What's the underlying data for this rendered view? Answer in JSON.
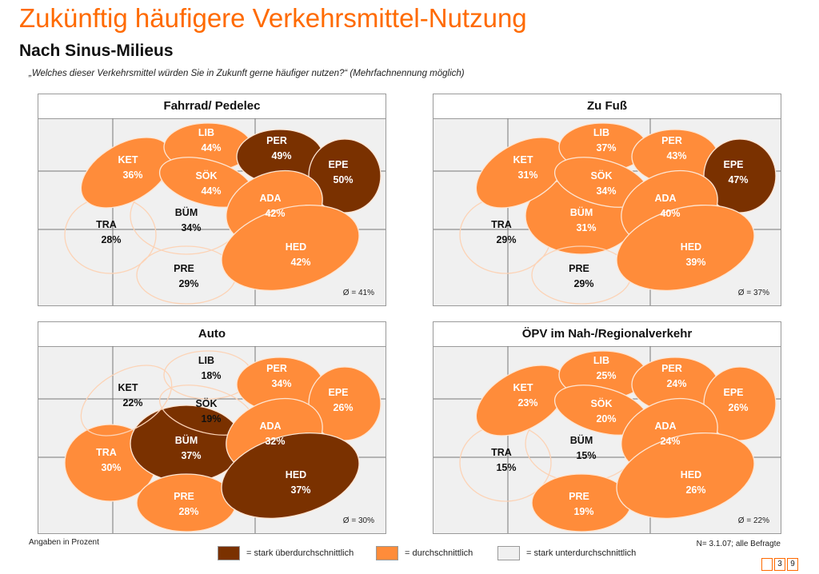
{
  "header": {
    "title": "Zukünftig häufigere Verkehrsmittel-Nutzung",
    "subtitle": "Nach Sinus-Milieus",
    "question": "„Welches dieser Verkehrsmittel würden Sie in Zukunft gerne häufiger nutzen?“ (Mehrfachnennung möglich)"
  },
  "colors": {
    "stark_ueber": "#7a3100",
    "durchschnitt": "#ff8c3a",
    "stark_unter": "#f0f0f0",
    "accent": "#ff6a00"
  },
  "panels": [
    {
      "title": "Fahrrad/ Pedelec",
      "average": "Ø = 41%",
      "milieus": {
        "KET": {
          "value": "36%",
          "level": "avg"
        },
        "LIB": {
          "value": "44%",
          "level": "avg"
        },
        "PER": {
          "value": "49%",
          "level": "high"
        },
        "EPE": {
          "value": "50%",
          "level": "high"
        },
        "SÖK": {
          "value": "44%",
          "level": "avg"
        },
        "ADA": {
          "value": "42%",
          "level": "avg"
        },
        "TRA": {
          "value": "28%",
          "level": "low"
        },
        "BÜM": {
          "value": "34%",
          "level": "low"
        },
        "HED": {
          "value": "42%",
          "level": "avg"
        },
        "PRE": {
          "value": "29%",
          "level": "low"
        }
      }
    },
    {
      "title": "Zu Fuß",
      "average": "Ø = 37%",
      "milieus": {
        "KET": {
          "value": "31%",
          "level": "avg"
        },
        "LIB": {
          "value": "37%",
          "level": "avg"
        },
        "PER": {
          "value": "43%",
          "level": "avg"
        },
        "EPE": {
          "value": "47%",
          "level": "high"
        },
        "SÖK": {
          "value": "34%",
          "level": "avg"
        },
        "ADA": {
          "value": "40%",
          "level": "avg"
        },
        "TRA": {
          "value": "29%",
          "level": "low"
        },
        "BÜM": {
          "value": "31%",
          "level": "avg"
        },
        "HED": {
          "value": "39%",
          "level": "avg"
        },
        "PRE": {
          "value": "29%",
          "level": "low"
        }
      }
    },
    {
      "title": "Auto",
      "average": "Ø = 30%",
      "milieus": {
        "KET": {
          "value": "22%",
          "level": "low"
        },
        "LIB": {
          "value": "18%",
          "level": "low"
        },
        "PER": {
          "value": "34%",
          "level": "avg"
        },
        "EPE": {
          "value": "26%",
          "level": "avg"
        },
        "SÖK": {
          "value": "19%",
          "level": "low"
        },
        "ADA": {
          "value": "32%",
          "level": "avg"
        },
        "TRA": {
          "value": "30%",
          "level": "avg"
        },
        "BÜM": {
          "value": "37%",
          "level": "high"
        },
        "HED": {
          "value": "37%",
          "level": "high"
        },
        "PRE": {
          "value": "28%",
          "level": "avg"
        }
      }
    },
    {
      "title": "ÖPV im Nah-/Regionalverkehr",
      "average": "Ø = 22%",
      "milieus": {
        "KET": {
          "value": "23%",
          "level": "avg"
        },
        "LIB": {
          "value": "25%",
          "level": "avg"
        },
        "PER": {
          "value": "24%",
          "level": "avg"
        },
        "EPE": {
          "value": "26%",
          "level": "avg"
        },
        "SÖK": {
          "value": "20%",
          "level": "avg"
        },
        "ADA": {
          "value": "24%",
          "level": "avg"
        },
        "TRA": {
          "value": "15%",
          "level": "low"
        },
        "BÜM": {
          "value": "15%",
          "level": "low"
        },
        "HED": {
          "value": "26%",
          "level": "avg"
        },
        "PRE": {
          "value": "19%",
          "level": "avg"
        }
      }
    }
  ],
  "footer": {
    "note": "Angaben in Prozent",
    "sample": "N= 3.1.07; alle Befragte",
    "legend": [
      "= stark überdurchschnittlich",
      "= durchschnittlich",
      "= stark unterdurchschnittlich"
    ],
    "page": [
      "",
      "3",
      "9"
    ]
  }
}
